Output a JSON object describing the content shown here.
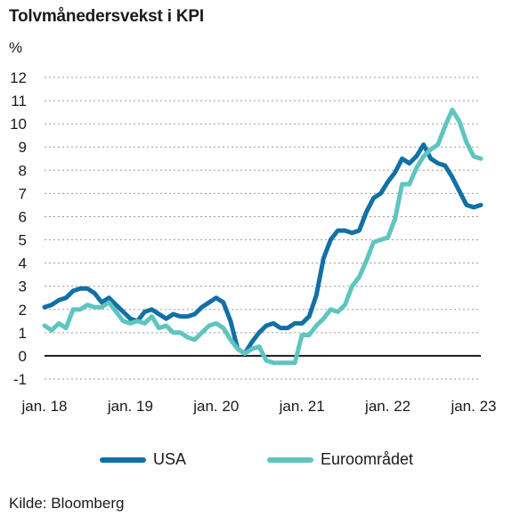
{
  "title": "Tolvmånedersvekst i KPI",
  "unit": "%",
  "source": "Kilde: Bloomberg",
  "colors": {
    "usa": "#1170a6",
    "euro": "#5ec5c0",
    "grid": "#9a9a9a",
    "zero": "#1a1a1a"
  },
  "chart_data": {
    "type": "line",
    "ylim": [
      -1,
      12
    ],
    "yticks": [
      "12",
      "11",
      "10",
      "9",
      "8",
      "7",
      "6",
      "5",
      "4",
      "3",
      "2",
      "1",
      "0",
      "-1"
    ],
    "xlim": [
      "2018-01",
      "2023-02"
    ],
    "xticks": [
      {
        "label": "jan. 18",
        "x": "2018-01"
      },
      {
        "label": "jan. 19",
        "x": "2019-01"
      },
      {
        "label": "jan. 20",
        "x": "2020-01"
      },
      {
        "label": "jan. 21",
        "x": "2021-01"
      },
      {
        "label": "jan. 22",
        "x": "2022-01"
      },
      {
        "label": "jan. 23",
        "x": "2023-01"
      }
    ],
    "grid": true,
    "legend_position": "bottom",
    "x": [
      "2018-01",
      "2018-02",
      "2018-03",
      "2018-04",
      "2018-05",
      "2018-06",
      "2018-07",
      "2018-08",
      "2018-09",
      "2018-10",
      "2018-11",
      "2018-12",
      "2019-01",
      "2019-02",
      "2019-03",
      "2019-04",
      "2019-05",
      "2019-06",
      "2019-07",
      "2019-08",
      "2019-09",
      "2019-10",
      "2019-11",
      "2019-12",
      "2020-01",
      "2020-02",
      "2020-03",
      "2020-04",
      "2020-05",
      "2020-06",
      "2020-07",
      "2020-08",
      "2020-09",
      "2020-10",
      "2020-11",
      "2020-12",
      "2021-01",
      "2021-02",
      "2021-03",
      "2021-04",
      "2021-05",
      "2021-06",
      "2021-07",
      "2021-08",
      "2021-09",
      "2021-10",
      "2021-11",
      "2021-12",
      "2022-01",
      "2022-02",
      "2022-03",
      "2022-04",
      "2022-05",
      "2022-06",
      "2022-07",
      "2022-08",
      "2022-09",
      "2022-10",
      "2022-11",
      "2022-12",
      "2023-01",
      "2023-02"
    ],
    "series": [
      {
        "name": "USA",
        "color_key": "usa",
        "values": [
          2.1,
          2.2,
          2.4,
          2.5,
          2.8,
          2.9,
          2.9,
          2.7,
          2.3,
          2.5,
          2.2,
          1.9,
          1.6,
          1.5,
          1.9,
          2.0,
          1.8,
          1.6,
          1.8,
          1.7,
          1.7,
          1.8,
          2.1,
          2.3,
          2.5,
          2.3,
          1.5,
          0.3,
          0.1,
          0.6,
          1.0,
          1.3,
          1.4,
          1.2,
          1.2,
          1.4,
          1.4,
          1.7,
          2.6,
          4.2,
          5.0,
          5.4,
          5.4,
          5.3,
          5.4,
          6.2,
          6.8,
          7.0,
          7.5,
          7.9,
          8.5,
          8.3,
          8.6,
          9.1,
          8.5,
          8.3,
          8.2,
          7.7,
          7.1,
          6.5,
          6.4,
          6.5
        ]
      },
      {
        "name": "Euroområdet",
        "color_key": "euro",
        "values": [
          1.3,
          1.1,
          1.4,
          1.2,
          2.0,
          2.0,
          2.2,
          2.1,
          2.1,
          2.3,
          1.9,
          1.5,
          1.4,
          1.5,
          1.4,
          1.7,
          1.2,
          1.3,
          1.0,
          1.0,
          0.8,
          0.7,
          1.0,
          1.3,
          1.4,
          1.2,
          0.7,
          0.3,
          0.1,
          0.3,
          0.4,
          -0.2,
          -0.3,
          -0.3,
          -0.3,
          -0.3,
          0.9,
          0.9,
          1.3,
          1.6,
          2.0,
          1.9,
          2.2,
          3.0,
          3.4,
          4.1,
          4.9,
          5.0,
          5.1,
          5.9,
          7.4,
          7.4,
          8.1,
          8.6,
          8.9,
          9.1,
          9.9,
          10.6,
          10.1,
          9.2,
          8.6,
          8.5
        ]
      }
    ]
  }
}
